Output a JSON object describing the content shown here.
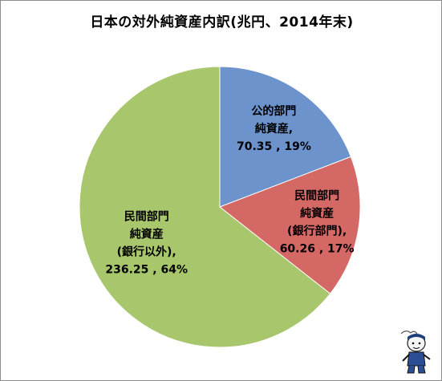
{
  "chart_data": {
    "type": "pie",
    "title": "日本の対外純資産内訳(兆円、2014年末)",
    "slices": [
      {
        "label": [
          "公的部門",
          "純資産,"
        ],
        "value": 70.35,
        "percent": "19%",
        "value_text": "70.35 , 19%",
        "color": "#6c93cc"
      },
      {
        "label": [
          "民間部門",
          "純資産",
          "(銀行部門),"
        ],
        "value": 60.26,
        "percent": "17%",
        "value_text": "60.26 , 17%",
        "color": "#d46865"
      },
      {
        "label": [
          "民間部門",
          "純資産",
          "(銀行以外),"
        ],
        "value": 236.25,
        "percent": "64%",
        "value_text": "236.25 , 64%",
        "color": "#a8c66c"
      }
    ],
    "start": "12 o'clock",
    "direction": "clockwise",
    "legend": "none"
  },
  "watermark": {
    "icon": "mascot-icon"
  }
}
